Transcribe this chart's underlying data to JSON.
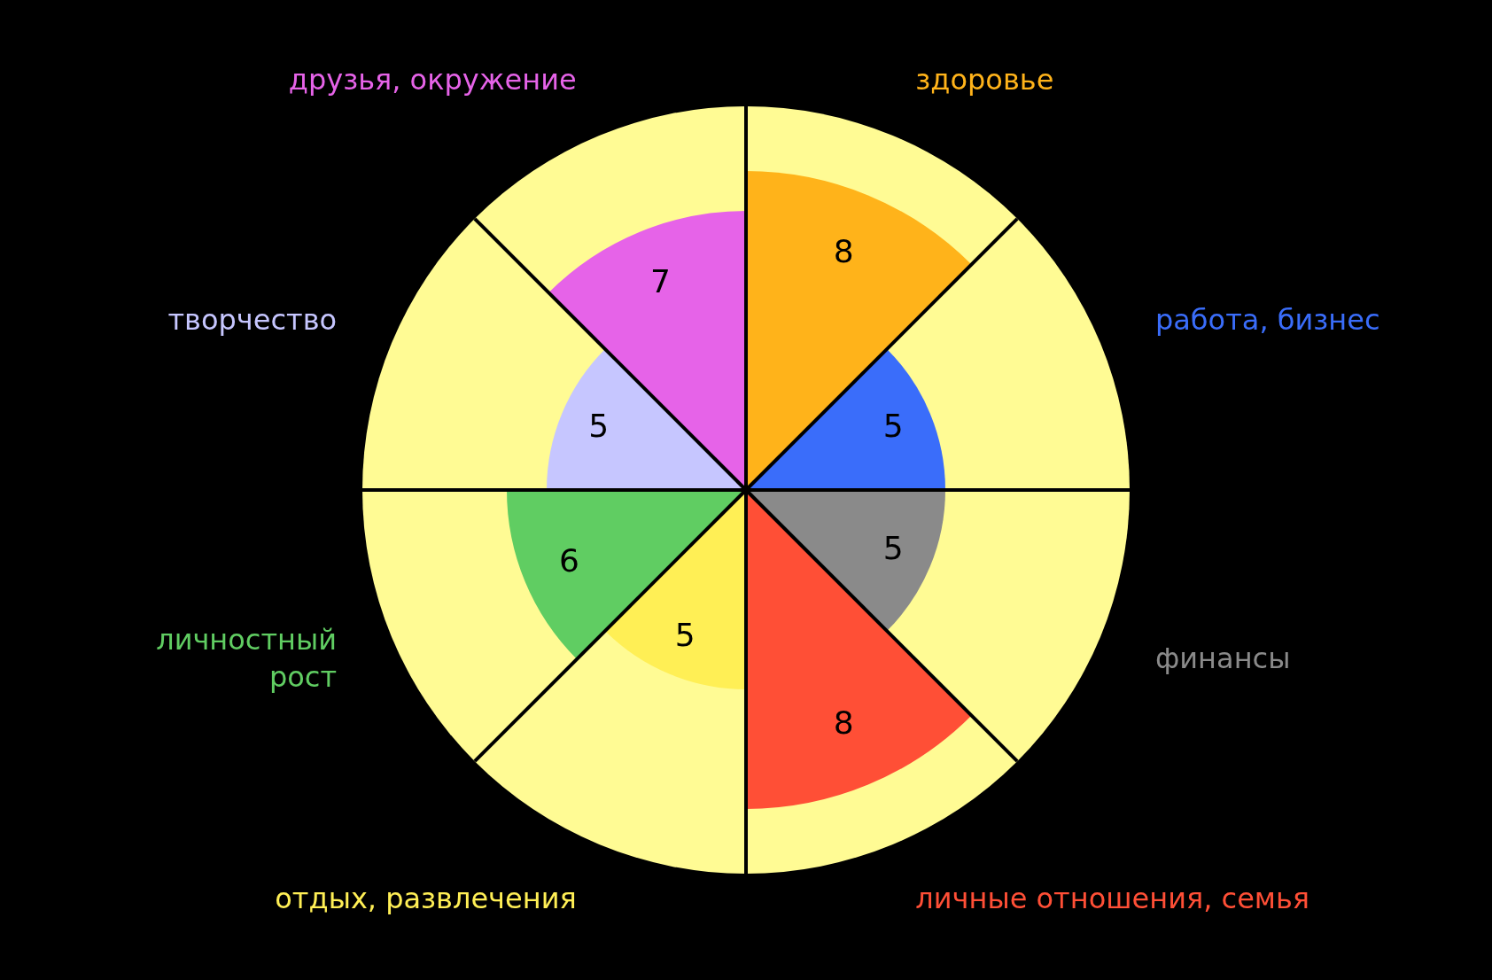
{
  "chart_data": {
    "type": "other",
    "categories": [
      "здоровье",
      "работа, бизнес",
      "финансы",
      "личные отношения, семья",
      "отдых, развлечения",
      "личностный\nрост",
      "творчество",
      "друзья, окружение"
    ],
    "series": [
      {
        "values": [
          8,
          5,
          5,
          8,
          5,
          6,
          5,
          7
        ],
        "colors": [
          "#ffb31a",
          "#3a6dfa",
          "#8a8a8a",
          "#ff4f36",
          "#ffef55",
          "#60cd62",
          "#c6c6ff",
          "#e663e8"
        ]
      }
    ],
    "data_labels": true
  }
}
